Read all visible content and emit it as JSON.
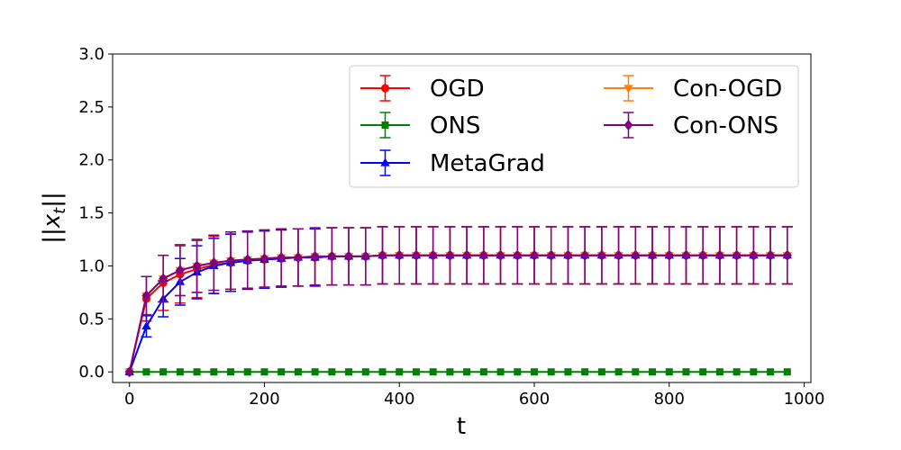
{
  "chart_data": {
    "type": "line",
    "title": "",
    "xlabel": "t",
    "ylabel": "||x_t||",
    "xlim": [
      -25,
      1010
    ],
    "ylim": [
      -0.1,
      3.0
    ],
    "xticks": [
      0,
      200,
      400,
      600,
      800,
      1000
    ],
    "yticks": [
      0.0,
      0.5,
      1.0,
      1.5,
      2.0,
      2.5,
      3.0
    ],
    "xtick_labels": [
      "0",
      "200",
      "400",
      "600",
      "800",
      "1000"
    ],
    "ytick_labels": [
      "0.0",
      "0.5",
      "1.0",
      "1.5",
      "2.0",
      "2.5",
      "3.0"
    ],
    "grid": false,
    "legend_position": "top-right",
    "legend_columns": 2,
    "x": [
      0,
      25,
      50,
      75,
      100,
      125,
      150,
      175,
      200,
      225,
      250,
      275,
      300,
      325,
      350,
      375,
      400,
      425,
      450,
      475,
      500,
      525,
      550,
      575,
      600,
      625,
      650,
      675,
      700,
      725,
      750,
      775,
      800,
      825,
      850,
      875,
      900,
      925,
      950,
      975
    ],
    "series": [
      {
        "name": "OGD",
        "color": "#ff0000",
        "marker": "circle",
        "values": [
          0,
          0.69,
          0.84,
          0.92,
          0.97,
          1.01,
          1.03,
          1.05,
          1.06,
          1.07,
          1.08,
          1.08,
          1.09,
          1.09,
          1.09,
          1.1,
          1.1,
          1.1,
          1.1,
          1.1,
          1.1,
          1.1,
          1.1,
          1.1,
          1.1,
          1.1,
          1.1,
          1.1,
          1.1,
          1.1,
          1.1,
          1.1,
          1.1,
          1.1,
          1.1,
          1.1,
          1.1,
          1.1,
          1.1,
          1.1
        ],
        "error": [
          0,
          0.21,
          0.26,
          0.27,
          0.27,
          0.27,
          0.27,
          0.27,
          0.27,
          0.27,
          0.27,
          0.27,
          0.27,
          0.27,
          0.27,
          0.27,
          0.27,
          0.27,
          0.27,
          0.27,
          0.27,
          0.27,
          0.27,
          0.27,
          0.27,
          0.27,
          0.27,
          0.27,
          0.27,
          0.27,
          0.27,
          0.27,
          0.27,
          0.27,
          0.27,
          0.27,
          0.27,
          0.27,
          0.27,
          0.27
        ]
      },
      {
        "name": "ONS",
        "color": "#008000",
        "marker": "square",
        "values": [
          0,
          0,
          0,
          0,
          0,
          0,
          0,
          0,
          0,
          0,
          0,
          0,
          0,
          0,
          0,
          0,
          0,
          0,
          0,
          0,
          0,
          0,
          0,
          0,
          0,
          0,
          0,
          0,
          0,
          0,
          0,
          0,
          0,
          0,
          0,
          0,
          0,
          0,
          0,
          0
        ],
        "error": [
          0,
          0,
          0,
          0,
          0,
          0,
          0,
          0,
          0,
          0,
          0,
          0,
          0,
          0,
          0,
          0,
          0,
          0,
          0,
          0,
          0,
          0,
          0,
          0,
          0,
          0,
          0,
          0,
          0,
          0,
          0,
          0,
          0,
          0,
          0,
          0,
          0,
          0,
          0,
          0
        ]
      },
      {
        "name": "MetaGrad",
        "color": "#0000ff",
        "marker": "triangle",
        "values": [
          0,
          0.43,
          0.69,
          0.85,
          0.94,
          1.0,
          1.03,
          1.05,
          1.06,
          1.07,
          1.08,
          1.08,
          1.09,
          1.09,
          1.09,
          1.1,
          1.1,
          1.1,
          1.1,
          1.1,
          1.1,
          1.1,
          1.1,
          1.1,
          1.1,
          1.1,
          1.1,
          1.1,
          1.1,
          1.1,
          1.1,
          1.1,
          1.1,
          1.1,
          1.1,
          1.1,
          1.1,
          1.1,
          1.1,
          1.1
        ],
        "error": [
          0,
          0.1,
          0.17,
          0.22,
          0.25,
          0.26,
          0.27,
          0.27,
          0.27,
          0.27,
          0.27,
          0.27,
          0.27,
          0.27,
          0.27,
          0.27,
          0.27,
          0.27,
          0.27,
          0.27,
          0.27,
          0.27,
          0.27,
          0.27,
          0.27,
          0.27,
          0.27,
          0.27,
          0.27,
          0.27,
          0.27,
          0.27,
          0.27,
          0.27,
          0.27,
          0.27,
          0.27,
          0.27,
          0.27,
          0.27
        ]
      },
      {
        "name": "Con-OGD",
        "color": "#ff7f0e",
        "marker": "triangle-down",
        "values": [
          0,
          0.72,
          0.88,
          0.96,
          1.0,
          1.03,
          1.05,
          1.06,
          1.07,
          1.08,
          1.08,
          1.09,
          1.09,
          1.09,
          1.09,
          1.1,
          1.1,
          1.1,
          1.1,
          1.1,
          1.1,
          1.1,
          1.1,
          1.1,
          1.1,
          1.1,
          1.1,
          1.1,
          1.1,
          1.1,
          1.1,
          1.1,
          1.1,
          1.1,
          1.1,
          1.1,
          1.1,
          1.1,
          1.1,
          1.1
        ],
        "error": [
          0,
          0.18,
          0.22,
          0.24,
          0.25,
          0.26,
          0.27,
          0.27,
          0.27,
          0.27,
          0.27,
          0.27,
          0.27,
          0.27,
          0.27,
          0.27,
          0.27,
          0.27,
          0.27,
          0.27,
          0.27,
          0.27,
          0.27,
          0.27,
          0.27,
          0.27,
          0.27,
          0.27,
          0.27,
          0.27,
          0.27,
          0.27,
          0.27,
          0.27,
          0.27,
          0.27,
          0.27,
          0.27,
          0.27,
          0.27
        ]
      },
      {
        "name": "Con-ONS",
        "color": "#800080",
        "marker": "diamond",
        "values": [
          0,
          0.72,
          0.88,
          0.96,
          1.0,
          1.03,
          1.05,
          1.06,
          1.07,
          1.08,
          1.08,
          1.09,
          1.09,
          1.09,
          1.09,
          1.1,
          1.1,
          1.1,
          1.1,
          1.1,
          1.1,
          1.1,
          1.1,
          1.1,
          1.1,
          1.1,
          1.1,
          1.1,
          1.1,
          1.1,
          1.1,
          1.1,
          1.1,
          1.1,
          1.1,
          1.1,
          1.1,
          1.1,
          1.1,
          1.1
        ],
        "error": [
          0,
          0.18,
          0.22,
          0.24,
          0.25,
          0.26,
          0.27,
          0.27,
          0.27,
          0.27,
          0.27,
          0.27,
          0.27,
          0.27,
          0.27,
          0.27,
          0.27,
          0.27,
          0.27,
          0.27,
          0.27,
          0.27,
          0.27,
          0.27,
          0.27,
          0.27,
          0.27,
          0.27,
          0.27,
          0.27,
          0.27,
          0.27,
          0.27,
          0.27,
          0.27,
          0.27,
          0.27,
          0.27,
          0.27,
          0.27
        ]
      }
    ]
  }
}
